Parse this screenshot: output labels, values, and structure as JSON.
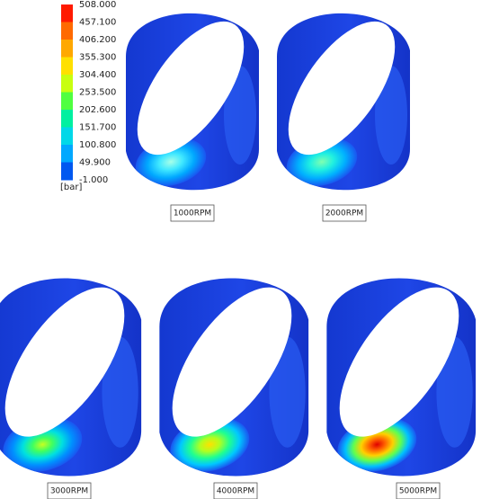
{
  "legend": {
    "levels": [
      "508.000",
      "457.100",
      "406.200",
      "355.300",
      "304.400",
      "253.500",
      "202.600",
      "151.700",
      "100.800",
      "49.900",
      "-1.000"
    ],
    "unit": "[bar]"
  },
  "panels": [
    {
      "label": "1000RPM"
    },
    {
      "label": "2000RPM"
    },
    {
      "label": "3000RPM"
    },
    {
      "label": "4000RPM"
    },
    {
      "label": "5000RPM"
    }
  ]
}
